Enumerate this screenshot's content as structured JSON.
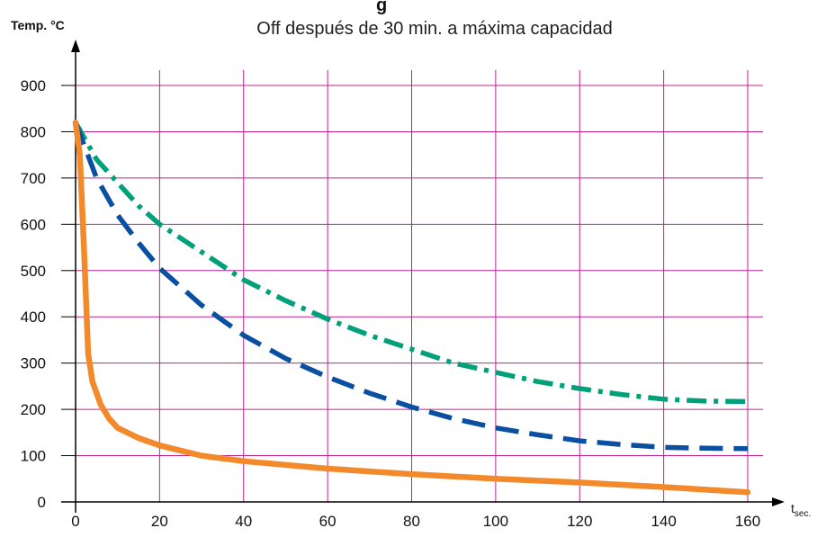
{
  "chart_data": {
    "type": "line",
    "title_fragment": "g",
    "subtitle": "Off después de 30 min. a máxima capacidad",
    "ylabel": "Temp. °C",
    "xlabel": "t",
    "xlabel_sub": "sec.",
    "xlim": [
      0,
      160
    ],
    "ylim": [
      0,
      900
    ],
    "xticks": [
      0,
      20,
      40,
      60,
      80,
      100,
      120,
      140,
      160
    ],
    "yticks": [
      0,
      100,
      200,
      300,
      400,
      500,
      600,
      700,
      800,
      900
    ],
    "grid": true,
    "grid_color": "#c02090",
    "axis_color": "#000000",
    "series": [
      {
        "color": "#00a07a",
        "style": "dash-dot",
        "x": [
          0,
          5,
          10,
          15,
          20,
          30,
          40,
          50,
          60,
          70,
          80,
          90,
          100,
          110,
          120,
          130,
          140,
          150,
          160
        ],
        "y": [
          820,
          740,
          690,
          640,
          600,
          540,
          480,
          435,
          395,
          360,
          330,
          300,
          280,
          260,
          245,
          232,
          222,
          218,
          217
        ]
      },
      {
        "color": "#0a4fa0",
        "style": "dashed",
        "x": [
          0,
          5,
          10,
          15,
          20,
          30,
          40,
          50,
          60,
          70,
          80,
          90,
          100,
          110,
          120,
          130,
          140,
          150,
          160
        ],
        "y": [
          820,
          700,
          620,
          560,
          505,
          425,
          360,
          310,
          270,
          235,
          205,
          180,
          160,
          145,
          132,
          124,
          118,
          116,
          115
        ]
      },
      {
        "color": "#f28a2c",
        "style": "solid",
        "x": [
          0,
          1,
          2,
          3,
          4,
          6,
          8,
          10,
          15,
          20,
          30,
          40,
          60,
          80,
          100,
          120,
          140,
          160
        ],
        "y": [
          820,
          750,
          550,
          320,
          260,
          210,
          180,
          160,
          138,
          122,
          100,
          88,
          72,
          60,
          50,
          42,
          32,
          21
        ]
      }
    ]
  }
}
